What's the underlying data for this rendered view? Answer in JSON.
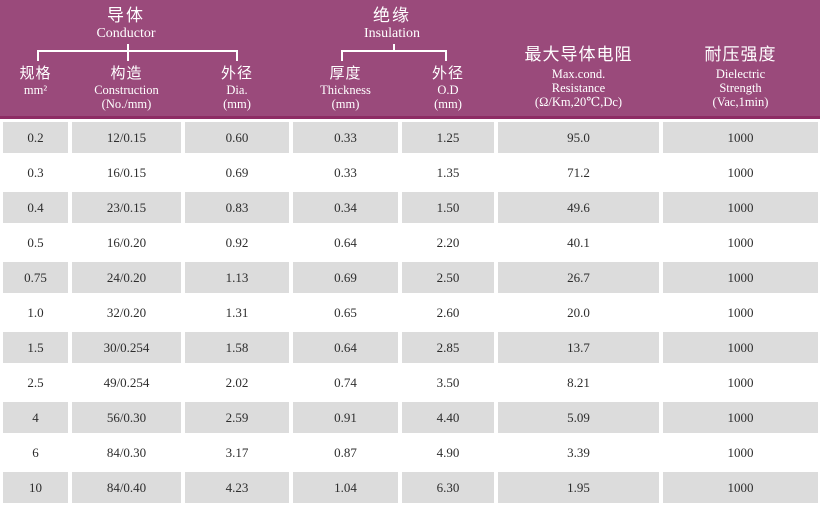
{
  "table": {
    "header": {
      "groups": [
        {
          "zh": "导体",
          "en": "Conductor"
        },
        {
          "zh": "绝缘",
          "en": "Insulation"
        }
      ],
      "columns": [
        {
          "zh": "规格",
          "en": [
            "mm²"
          ]
        },
        {
          "zh": "构造",
          "en": [
            "Construction",
            "(No./mm)"
          ]
        },
        {
          "zh": "外径",
          "en": [
            "Dia.",
            "(mm)"
          ]
        },
        {
          "zh": "厚度",
          "en": [
            "Thickness",
            "(mm)"
          ]
        },
        {
          "zh": "外径",
          "en": [
            "O.D",
            "(mm)"
          ]
        },
        {
          "zh": "最大导体电阻",
          "en": [
            "Max.cond.",
            "Resistance",
            "(Ω/Km,20℃,Dc)"
          ]
        },
        {
          "zh": "耐压强度",
          "en": [
            "Dielectric",
            "Strength",
            "(Vac,1min)"
          ]
        }
      ]
    },
    "rows": [
      [
        "0.2",
        "12/0.15",
        "0.60",
        "0.33",
        "1.25",
        "95.0",
        "1000"
      ],
      [
        "0.3",
        "16/0.15",
        "0.69",
        "0.33",
        "1.35",
        "71.2",
        "1000"
      ],
      [
        "0.4",
        "23/0.15",
        "0.83",
        "0.34",
        "1.50",
        "49.6",
        "1000"
      ],
      [
        "0.5",
        "16/0.20",
        "0.92",
        "0.64",
        "2.20",
        "40.1",
        "1000"
      ],
      [
        "0.75",
        "24/0.20",
        "1.13",
        "0.69",
        "2.50",
        "26.7",
        "1000"
      ],
      [
        "1.0",
        "32/0.20",
        "1.31",
        "0.65",
        "2.60",
        "20.0",
        "1000"
      ],
      [
        "1.5",
        "30/0.254",
        "1.58",
        "0.64",
        "2.85",
        "13.7",
        "1000"
      ],
      [
        "2.5",
        "49/0.254",
        "2.02",
        "0.74",
        "3.50",
        "8.21",
        "1000"
      ],
      [
        "4",
        "56/0.30",
        "2.59",
        "0.91",
        "4.40",
        "5.09",
        "1000"
      ],
      [
        "6",
        "84/0.30",
        "3.17",
        "0.87",
        "4.90",
        "3.39",
        "1000"
      ],
      [
        "10",
        "84/0.40",
        "4.23",
        "1.04",
        "6.30",
        "1.95",
        "1000"
      ]
    ],
    "colors": {
      "header_bg": "#9a4a7b",
      "header_rule": "#8d2c64",
      "header_text": "#ffffff",
      "row_alt_bg": "#dcdcdc",
      "row_bg": "#ffffff",
      "cell_text": "#2d2d2d"
    }
  }
}
